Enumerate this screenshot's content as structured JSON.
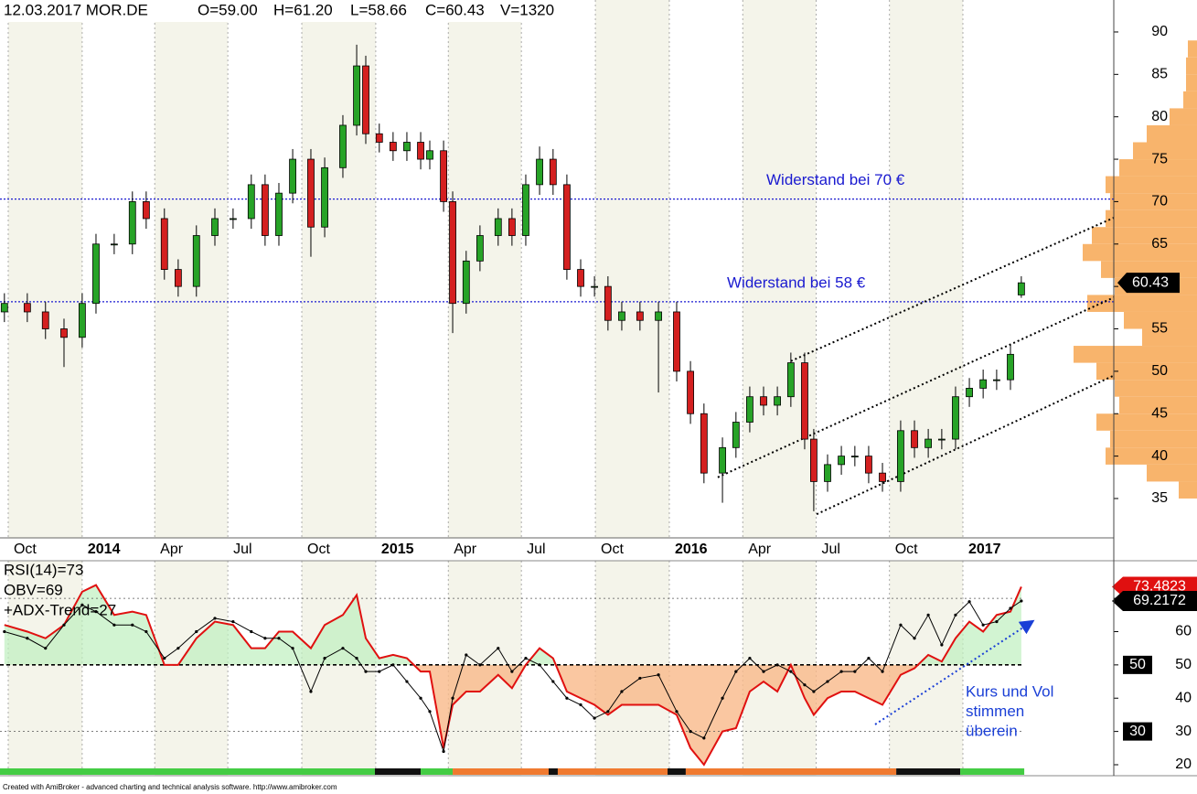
{
  "chart_data": [
    {
      "type": "candlestick",
      "header": [
        "12.03.2017 MOR.DE",
        "O=59.00",
        "H=61.20",
        "L=58.66",
        "C=60.43",
        "V=1320"
      ],
      "x": [
        2013.735,
        2013.813,
        2013.875,
        2013.938,
        2014.0,
        2014.047,
        2014.109,
        2014.171,
        2014.218,
        2014.28,
        2014.327,
        2014.389,
        2014.452,
        2014.514,
        2014.576,
        2014.623,
        2014.67,
        2014.717,
        2014.779,
        2014.826,
        2014.888,
        2014.935,
        2014.966,
        2015.012,
        2015.059,
        2015.106,
        2015.153,
        2015.184,
        2015.231,
        2015.262,
        2015.308,
        2015.355,
        2015.417,
        2015.464,
        2015.511,
        2015.558,
        2015.604,
        2015.651,
        2015.698,
        2015.745,
        2015.791,
        2015.838,
        2015.9,
        2015.963,
        2016.025,
        2016.072,
        2016.118,
        2016.181,
        2016.227,
        2016.274,
        2016.321,
        2016.368,
        2016.414,
        2016.461,
        2016.492,
        2016.539,
        2016.586,
        2016.632,
        2016.679,
        2016.726,
        2016.788,
        2016.835,
        2016.882,
        2016.928,
        2016.975,
        2017.022,
        2017.069,
        2017.115,
        2017.162,
        2017.199
      ],
      "open": [
        57,
        58,
        57,
        55,
        54,
        58,
        65,
        65,
        70,
        68,
        62,
        60,
        66,
        68,
        68,
        72,
        66,
        71,
        75,
        67,
        74,
        79,
        86,
        78,
        77,
        76,
        77,
        75,
        76,
        70,
        58,
        63,
        66,
        68,
        66,
        72,
        75,
        72,
        62,
        60,
        60,
        56,
        57,
        56,
        57,
        50,
        45,
        38,
        41,
        44,
        47,
        46,
        47,
        51,
        42,
        37,
        39,
        40,
        40,
        38,
        37,
        43,
        41,
        42,
        42,
        47,
        48,
        49,
        49,
        59
      ],
      "high": [
        59.2,
        59.2,
        58.2,
        56.2,
        59.2,
        66.2,
        66.2,
        71.2,
        71.2,
        69.2,
        63.2,
        67.2,
        69.2,
        69.2,
        73.2,
        73.2,
        72.2,
        76.2,
        76.2,
        75.2,
        80.2,
        88.5,
        87.2,
        79.2,
        78.2,
        78.2,
        78.2,
        77.2,
        77.2,
        71.2,
        64.2,
        67.2,
        69.2,
        69.2,
        73.2,
        76.5,
        76.2,
        73.2,
        63.2,
        61.2,
        61.2,
        58.2,
        58.2,
        58.2,
        58.2,
        51.2,
        46.2,
        42.2,
        45.2,
        48.2,
        48.2,
        48.2,
        52.2,
        52.2,
        43.2,
        40.2,
        41.2,
        41.2,
        41.2,
        39.2,
        44.2,
        44.2,
        43.2,
        43.2,
        48.2,
        49.2,
        50.2,
        50.2,
        53.2,
        61.2
      ],
      "low": [
        55.8,
        55.8,
        53.8,
        50.5,
        52.8,
        56.8,
        63.8,
        63.8,
        66.8,
        60.8,
        58.8,
        58.8,
        64.8,
        66.8,
        66.8,
        64.8,
        64.8,
        69.8,
        63.5,
        65.8,
        72.8,
        77.8,
        76.8,
        75.8,
        74.8,
        74.8,
        73.8,
        73.8,
        68.8,
        54.5,
        56.8,
        61.8,
        64.8,
        64.8,
        64.8,
        70.8,
        70.8,
        60.8,
        58.8,
        58.8,
        54.8,
        54.8,
        54.8,
        47.5,
        48.8,
        43.8,
        36.8,
        34.5,
        39.8,
        42.8,
        44.8,
        44.8,
        45.8,
        40.8,
        33.5,
        35.8,
        37.8,
        38.8,
        36.8,
        35.8,
        35.8,
        39.8,
        39.8,
        40.8,
        40.8,
        45.8,
        46.8,
        47.8,
        47.8,
        58.66
      ],
      "close": [
        58,
        57,
        55,
        54,
        58,
        65,
        65,
        70,
        68,
        62,
        60,
        66,
        68,
        68,
        72,
        66,
        71,
        75,
        67,
        74,
        79,
        86,
        78,
        77,
        76,
        77,
        75,
        76,
        70,
        58,
        63,
        66,
        68,
        66,
        72,
        75,
        72,
        62,
        60,
        60,
        56,
        57,
        56,
        57,
        50,
        45,
        38,
        41,
        44,
        47,
        46,
        47,
        51,
        42,
        37,
        39,
        40,
        40,
        38,
        37,
        43,
        41,
        42,
        42,
        47,
        48,
        49,
        49,
        52,
        60.43
      ],
      "up_color": "#27a327",
      "down_color": "#d42020",
      "xlim": [
        2013.72,
        2017.514
      ],
      "ylim": [
        30.36,
        93.77
      ],
      "yticks": [
        35,
        40,
        45,
        50,
        55,
        60,
        65,
        70,
        75,
        80,
        85,
        90
      ],
      "xticks": [
        {
          "value": 2013.748,
          "label": "Oct"
        },
        2014,
        {
          "value": 2014.247,
          "label": "Apr"
        },
        {
          "value": 2014.496,
          "label": "Jul"
        },
        {
          "value": 2014.748,
          "label": "Oct"
        },
        2015,
        {
          "value": 2015.247,
          "label": "Apr"
        },
        {
          "value": 2015.496,
          "label": "Jul"
        },
        {
          "value": 2015.748,
          "label": "Oct"
        },
        2016,
        {
          "value": 2016.25,
          "label": "Apr"
        },
        {
          "value": 2016.5,
          "label": "Jul"
        },
        {
          "value": 2016.75,
          "label": "Oct"
        },
        2017
      ],
      "hlines": [
        {
          "value": 70.3,
          "label": "Widerstand bei 70 €"
        },
        {
          "value": 58.2,
          "label": "Widerstand bei 58 €"
        }
      ],
      "hline_color": "#1a1ad0",
      "channels": [
        {
          "x": [
            2016.414,
            2017.514
          ],
          "y": [
            51.2,
            68.1
          ]
        },
        {
          "x": [
            2016.165,
            2017.514
          ],
          "y": [
            37.5,
            58.7
          ]
        },
        {
          "x": [
            2016.502,
            2017.514
          ],
          "y": [
            33.15,
            49.5
          ]
        }
      ],
      "volume_profile": {
        "bins": [
          35,
          37,
          39,
          41,
          43,
          45,
          47,
          49,
          51,
          53,
          55,
          57,
          59,
          61,
          63,
          65,
          67,
          69,
          71,
          73,
          75,
          77,
          79,
          81,
          83,
          85,
          87,
          89
        ],
        "counts": [
          20,
          55,
          100,
          95,
          110,
          85,
          90,
          110,
          135,
          60,
          80,
          120,
          90,
          105,
          125,
          115,
          100,
          95,
          100,
          85,
          70,
          55,
          30,
          15,
          12,
          12,
          10
        ],
        "color": "#f8b46c"
      }
    },
    {
      "type": "line",
      "legend": [
        "RSI(14)=73",
        "OBV=69",
        "+ADX-Trend=27"
      ],
      "x": [
        2013.735,
        2013.813,
        2013.875,
        2013.938,
        2014.0,
        2014.047,
        2014.109,
        2014.171,
        2014.218,
        2014.28,
        2014.327,
        2014.389,
        2014.452,
        2014.514,
        2014.576,
        2014.623,
        2014.67,
        2014.717,
        2014.779,
        2014.826,
        2014.888,
        2014.935,
        2014.966,
        2015.012,
        2015.059,
        2015.106,
        2015.153,
        2015.184,
        2015.231,
        2015.262,
        2015.308,
        2015.355,
        2015.417,
        2015.464,
        2015.511,
        2015.558,
        2015.604,
        2015.651,
        2015.698,
        2015.745,
        2015.791,
        2015.838,
        2015.9,
        2015.963,
        2016.025,
        2016.072,
        2016.118,
        2016.181,
        2016.227,
        2016.274,
        2016.321,
        2016.368,
        2016.414,
        2016.461,
        2016.492,
        2016.539,
        2016.586,
        2016.632,
        2016.679,
        2016.726,
        2016.788,
        2016.835,
        2016.882,
        2016.928,
        2016.975,
        2017.022,
        2017.069,
        2017.115,
        2017.162,
        2017.199
      ],
      "series": [
        {
          "color": "#e01010",
          "fill": true,
          "values": [
            62,
            60,
            58,
            62,
            72,
            74,
            65,
            66,
            65,
            50,
            50,
            58,
            63,
            62,
            55,
            55,
            60,
            60,
            55,
            62,
            65,
            71,
            58,
            52,
            53,
            52,
            48,
            48,
            25,
            38,
            42,
            42,
            47,
            43,
            50,
            55,
            52,
            42,
            40,
            38,
            35,
            38,
            38,
            38,
            35,
            25,
            20,
            30,
            31,
            42,
            45,
            42,
            50,
            40,
            35,
            40,
            42,
            42,
            40,
            38,
            47,
            49,
            53,
            51,
            58,
            63,
            60,
            65,
            66,
            73.4823
          ]
        },
        {
          "color": "#000000",
          "markers": true,
          "values": [
            60,
            58,
            55,
            62,
            68,
            66,
            62,
            62,
            60,
            52,
            55,
            60,
            64,
            63,
            60,
            58,
            58,
            55,
            42,
            52,
            55,
            52,
            48,
            48,
            50,
            45,
            40,
            36,
            24,
            40,
            53,
            50,
            55,
            48,
            52,
            50,
            45,
            40,
            38,
            34,
            36,
            42,
            46,
            47,
            36,
            30,
            28,
            40,
            48,
            52,
            48,
            50,
            48,
            44,
            42,
            45,
            48,
            48,
            52,
            48,
            62,
            58,
            65,
            56,
            65,
            69,
            62,
            63,
            67,
            69.2172
          ]
        }
      ],
      "fill_up_color": "#bff0bf",
      "fill_down_color": "#f9b98a",
      "xlim": [
        2013.72,
        2017.514
      ],
      "ylim": [
        16.7,
        81.3
      ],
      "yticks": [
        20,
        30,
        40,
        50,
        60,
        70
      ],
      "ref_lines": [
        70,
        50,
        30
      ],
      "trend_bar": {
        "edges": [
          2013.72,
          2014.997,
          2015.153,
          2015.262,
          2015.589,
          2015.62,
          2015.994,
          2016.056,
          2016.773,
          2016.991,
          2017.209
        ],
        "colors": [
          "#44cc44",
          "#111111",
          "#44cc44",
          "#f07a30",
          "#111111",
          "#f07a30",
          "#111111",
          "#f07a30",
          "#111111",
          "#44cc44"
        ]
      },
      "arrow": {
        "x": [
          2016.701,
          2017.234
        ],
        "y": [
          32.1,
          62.9
        ],
        "color": "#1a3fd6"
      },
      "annotation": [
        "Kurs und Vol",
        "stimmen",
        "überein"
      ]
    }
  ],
  "footer": "Created with AmiBroker - advanced charting and technical analysis software. http://www.amibroker.com"
}
